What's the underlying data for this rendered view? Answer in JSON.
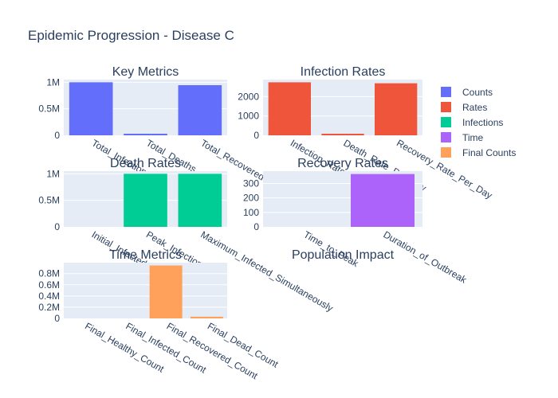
{
  "chart_data": {
    "type": "bar",
    "title": "Epidemic Progression - Disease C",
    "legend": {
      "placement": "right",
      "entries": [
        {
          "name": "Counts",
          "color": "#636efa"
        },
        {
          "name": "Rates",
          "color": "#ef553b"
        },
        {
          "name": "Infections",
          "color": "#00cc96"
        },
        {
          "name": "Time",
          "color": "#ab63fa"
        },
        {
          "name": "Final Counts",
          "color": "#ffa15a"
        }
      ]
    },
    "panels": [
      {
        "id": "key-metrics",
        "title": "Key Metrics",
        "series": "Counts",
        "color": "#636efa",
        "categories": [
          "Total_Infections",
          "Total_Deaths",
          "Total_Recovered"
        ],
        "values": [
          1000000,
          30000,
          945000
        ],
        "ylim": [
          0,
          1050000
        ],
        "yticks": [
          0,
          500000,
          1000000
        ],
        "ytick_labels": [
          "0",
          "0.5M",
          "1M"
        ]
      },
      {
        "id": "infection-rates",
        "title": "Infection Rates",
        "series": "Rates",
        "color": "#ef553b",
        "categories": [
          "Infection_Rate_Per_Day",
          "Death_Rate_Per_Day",
          "Recovery_Rate_Per_Day"
        ],
        "values": [
          2740,
          82,
          2690
        ],
        "ylim": [
          0,
          2880
        ],
        "yticks": [
          0,
          1000,
          2000
        ],
        "ytick_labels": [
          "0",
          "1000",
          "2000"
        ]
      },
      {
        "id": "death-rates",
        "title": "Death Rates",
        "series": "Infections",
        "color": "#00cc96",
        "categories": [
          "Initial_Infected",
          "Peak_Infection_Rate",
          "Maximum_Infected_Simultaneously"
        ],
        "values": [
          100,
          1000000,
          1000000
        ],
        "ylim": [
          0,
          1050000
        ],
        "yticks": [
          0,
          500000,
          1000000
        ],
        "ytick_labels": [
          "0",
          "0.5M",
          "1M"
        ]
      },
      {
        "id": "recovery-rates",
        "title": "Recovery Rates",
        "series": "Time",
        "color": "#ab63fa",
        "categories": [
          "Time_to_Peak",
          "Duration_of_Outbreak"
        ],
        "values": [
          0,
          365
        ],
        "ylim": [
          0,
          385
        ],
        "yticks": [
          0,
          100,
          200,
          300
        ],
        "ytick_labels": [
          "0",
          "100",
          "200",
          "300"
        ]
      },
      {
        "id": "time-metrics",
        "title": "Time Metrics",
        "series": "Final Counts",
        "color": "#ffa15a",
        "categories": [
          "Final_Healthy_Count",
          "Final_Infected_Count",
          "Final_Recovered_Count",
          "Final_Dead_Count"
        ],
        "values": [
          0,
          0,
          945000,
          30000
        ],
        "ylim": [
          0,
          995000
        ],
        "yticks": [
          0,
          200000,
          400000,
          600000,
          800000
        ],
        "ytick_labels": [
          "0",
          "0.2M",
          "0.4M",
          "0.6M",
          "0.8M"
        ]
      },
      {
        "id": "population-impact",
        "title": "Population Impact",
        "empty": true
      }
    ]
  }
}
